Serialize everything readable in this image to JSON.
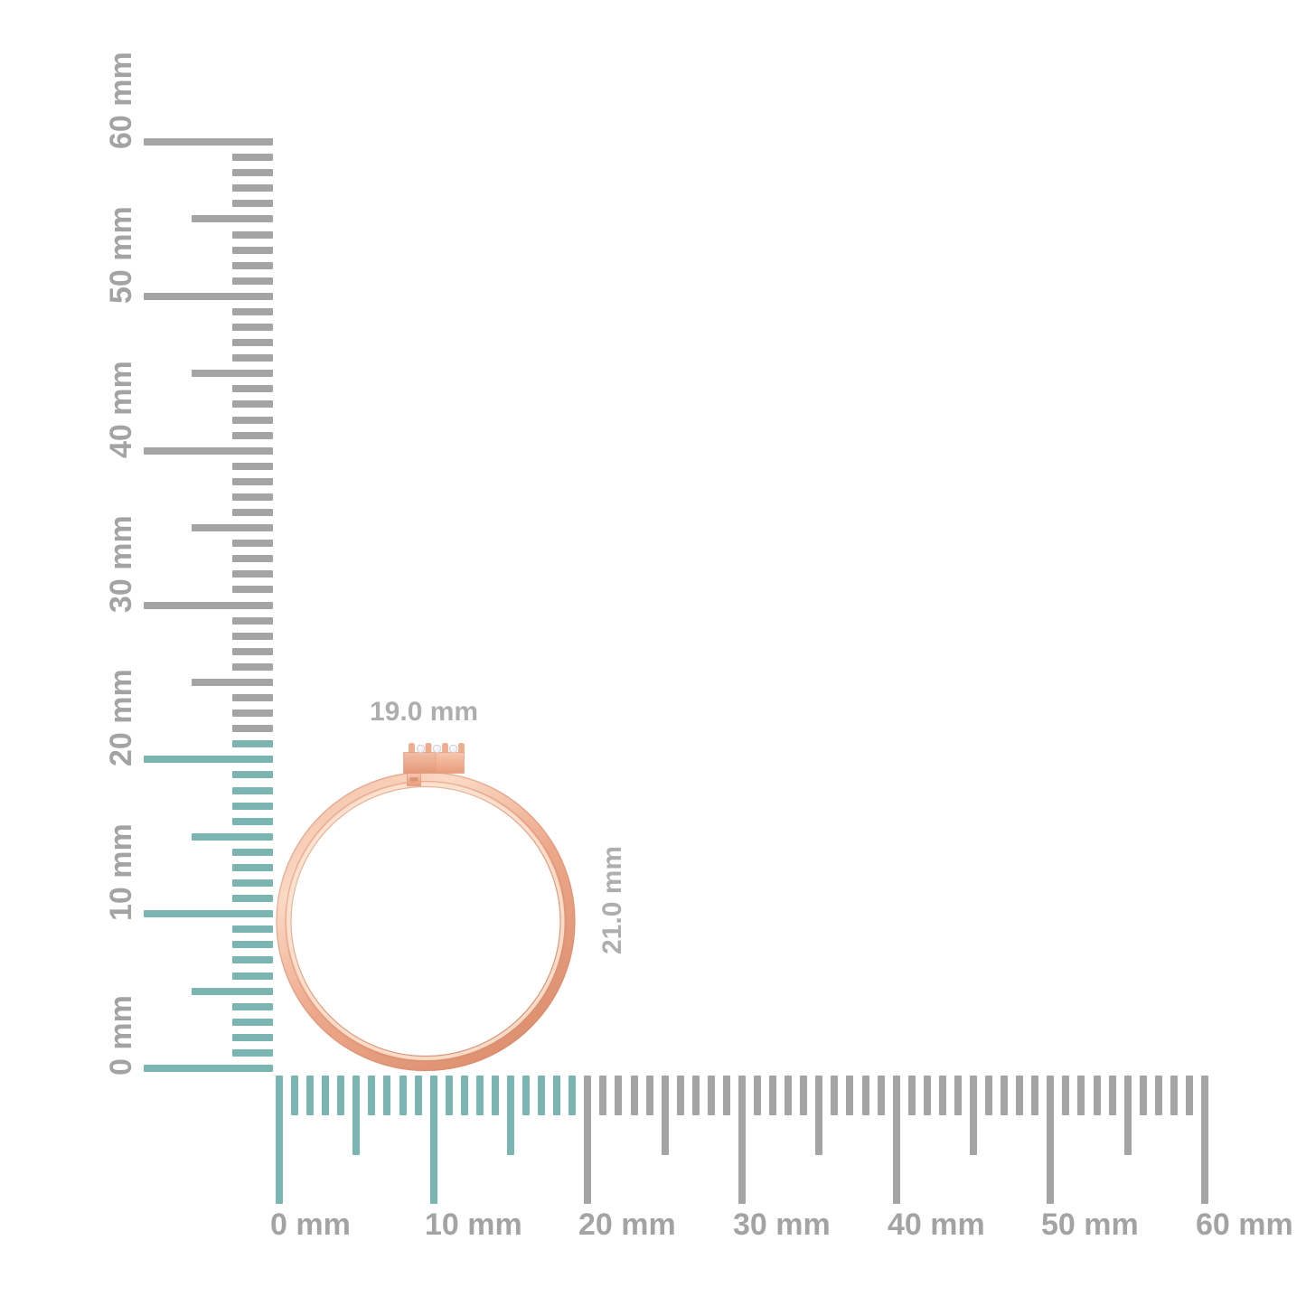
{
  "product": {
    "type": "ring",
    "finish": "rose-gold",
    "stones_visible": 3,
    "width_label": "19.0 mm",
    "height_label": "21.0 mm",
    "width_mm": 19.0,
    "height_mm": 21.0
  },
  "rulers": {
    "unit": "mm",
    "vertical": {
      "min_mm": 0,
      "max_mm": 60,
      "minor_step_mm": 1,
      "medium_step_mm": 5,
      "label_step_mm": 10,
      "highlight_to_mm": 21,
      "labels": [
        "0 mm",
        "10 mm",
        "20 mm",
        "30 mm",
        "40 mm",
        "50 mm",
        "60 mm"
      ]
    },
    "horizontal": {
      "min_mm": 0,
      "max_mm": 60,
      "minor_step_mm": 1,
      "medium_step_mm": 5,
      "label_step_mm": 10,
      "highlight_to_mm": 19,
      "labels": [
        "0 mm",
        "10 mm",
        "20 mm",
        "30 mm",
        "40 mm",
        "50 mm",
        "60 mm"
      ]
    }
  },
  "colors": {
    "background": "#ffffff",
    "tick_gray": "#a4a4a4",
    "tick_highlight_teal": "#7ab5b1",
    "ruler_label_gray": "#a3a3a3",
    "dimension_label_gray": "#aeaeae",
    "ring_rose_light": "#fbd9c4",
    "ring_rose_base": "#eda88b",
    "ring_rose_dark": "#dd9170",
    "diamond_white": "#f2f2f4"
  }
}
